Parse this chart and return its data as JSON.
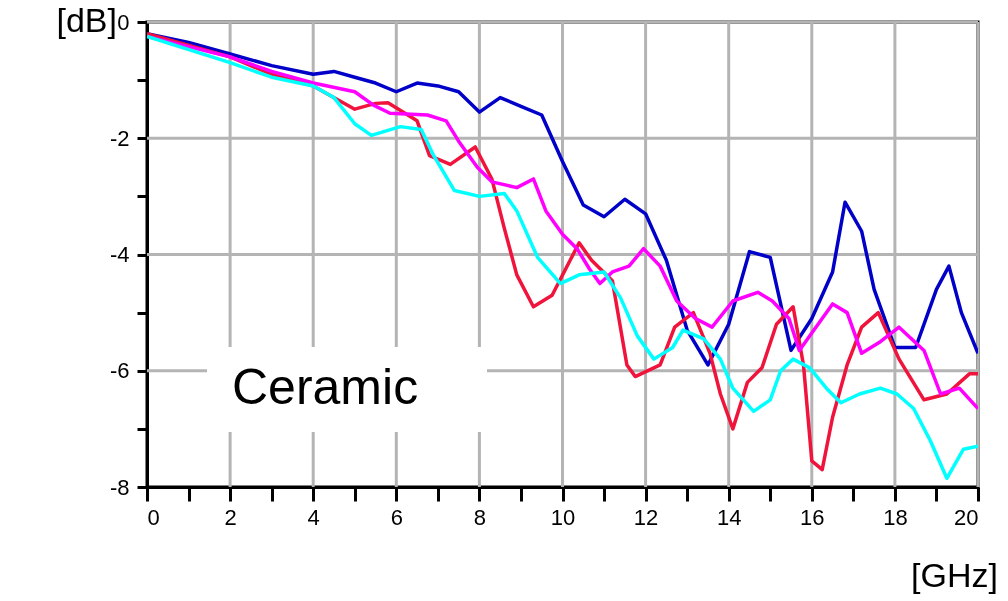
{
  "chart_data": {
    "type": "line",
    "xlabel": "[GHz]",
    "ylabel": "[dB]",
    "annotations": [
      "Ceramic"
    ],
    "xlim": [
      0,
      20
    ],
    "ylim": [
      -8,
      0
    ],
    "xticks": [
      0,
      {
        "value": 1,
        "label": null
      },
      2,
      {
        "value": 3,
        "label": null
      },
      4,
      {
        "value": 5,
        "label": null
      },
      6,
      {
        "value": 7,
        "label": null
      },
      8,
      {
        "value": 9,
        "label": null
      },
      10,
      {
        "value": 11,
        "label": null
      },
      12,
      {
        "value": 13,
        "label": null
      },
      14,
      {
        "value": 15,
        "label": null
      },
      16,
      {
        "value": 17,
        "label": null
      },
      18,
      {
        "value": 19,
        "label": null
      },
      20
    ],
    "yticks": [
      -8,
      {
        "value": -7,
        "label": null
      },
      -6,
      {
        "value": -5,
        "label": null
      },
      -4,
      {
        "value": -3,
        "label": null
      },
      -2,
      {
        "value": -1,
        "label": null
      },
      0
    ],
    "grid": true,
    "legend": false,
    "line_style": "solid",
    "marker": "none",
    "series": [
      {
        "color": "#0000c8",
        "x": [
          0,
          1,
          2,
          3,
          4,
          4.5,
          5,
          5.5,
          6,
          6.5,
          7,
          7.5,
          8,
          8.5,
          9,
          9.5,
          10,
          10.5,
          11,
          11.5,
          12,
          12.5,
          13,
          13.5,
          14,
          14.5,
          15,
          15.5,
          16,
          16.5,
          16.8,
          17.2,
          17.5,
          18,
          18.5,
          19,
          19.3,
          19.6,
          20
        ],
        "values": [
          -0.2,
          -0.35,
          -0.55,
          -0.75,
          -0.9,
          -0.85,
          -0.95,
          -1.05,
          -1.2,
          -1.05,
          -1.1,
          -1.2,
          -1.55,
          -1.3,
          -1.45,
          -1.6,
          -2.4,
          -3.15,
          -3.35,
          -3.05,
          -3.3,
          -4.1,
          -5.3,
          -5.9,
          -5.2,
          -3.95,
          -4.05,
          -5.65,
          -5.1,
          -4.3,
          -3.1,
          -3.6,
          -4.6,
          -5.6,
          -5.6,
          -4.6,
          -4.2,
          -5.0,
          -5.7
        ]
      },
      {
        "color": "#f0143c",
        "x": [
          0,
          2,
          3,
          4,
          5,
          5.5,
          5.8,
          6.5,
          6.8,
          7.3,
          7.9,
          8.3,
          8.6,
          8.9,
          9.3,
          9.75,
          10.4,
          10.7,
          11.2,
          11.55,
          11.75,
          12.35,
          12.7,
          13.15,
          13.55,
          13.8,
          14.1,
          14.45,
          14.8,
          15.15,
          15.55,
          15.8,
          16.0,
          16.25,
          16.5,
          16.85,
          17.2,
          17.6,
          18.1,
          18.7,
          19.25,
          19.8,
          20
        ],
        "values": [
          -0.2,
          -0.6,
          -0.9,
          -1.1,
          -1.5,
          -1.4,
          -1.39,
          -1.7,
          -2.3,
          -2.45,
          -2.15,
          -2.7,
          -3.55,
          -4.35,
          -4.9,
          -4.7,
          -3.8,
          -4.1,
          -4.45,
          -5.9,
          -6.1,
          -5.9,
          -5.25,
          -5.0,
          -5.7,
          -6.4,
          -7.0,
          -6.2,
          -5.95,
          -5.2,
          -4.9,
          -5.9,
          -7.55,
          -7.7,
          -6.8,
          -5.9,
          -5.25,
          -5.0,
          -5.8,
          -6.5,
          -6.4,
          -6.05,
          -6.05
        ]
      },
      {
        "color": "#ff00ff",
        "x": [
          0,
          2,
          3,
          4,
          5,
          5.45,
          5.85,
          6.75,
          7.2,
          7.5,
          7.95,
          8.3,
          8.9,
          9.3,
          9.6,
          10.0,
          10.35,
          10.65,
          10.9,
          11.2,
          11.6,
          11.95,
          12.35,
          12.75,
          13.2,
          13.6,
          14.1,
          14.7,
          15.05,
          15.45,
          15.7,
          16.0,
          16.5,
          16.85,
          17.2,
          17.65,
          18.1,
          18.7,
          19.1,
          19.55,
          20
        ],
        "values": [
          -0.25,
          -0.6,
          -0.85,
          -1.05,
          -1.2,
          -1.43,
          -1.57,
          -1.6,
          -1.7,
          -2.05,
          -2.5,
          -2.75,
          -2.85,
          -2.7,
          -3.25,
          -3.65,
          -3.9,
          -4.25,
          -4.5,
          -4.3,
          -4.2,
          -3.9,
          -4.2,
          -4.8,
          -5.1,
          -5.25,
          -4.8,
          -4.65,
          -4.8,
          -5.1,
          -5.65,
          -5.35,
          -4.85,
          -5.0,
          -5.7,
          -5.5,
          -5.25,
          -5.65,
          -6.4,
          -6.3,
          -6.65
        ]
      },
      {
        "color": "#00ffff",
        "x": [
          0,
          2,
          3,
          4,
          4.5,
          5.0,
          5.4,
          6.1,
          6.6,
          6.9,
          7.4,
          8.0,
          8.6,
          8.9,
          9.4,
          9.95,
          10.4,
          11.0,
          11.4,
          11.8,
          12.2,
          12.65,
          12.9,
          13.4,
          13.8,
          14.1,
          14.6,
          15.0,
          15.25,
          15.55,
          15.95,
          16.35,
          16.7,
          17.15,
          17.65,
          18.05,
          18.45,
          18.85,
          19.25,
          19.65,
          20
        ],
        "values": [
          -0.25,
          -0.7,
          -0.95,
          -1.1,
          -1.3,
          -1.75,
          -1.95,
          -1.8,
          -1.85,
          -2.3,
          -2.9,
          -3.0,
          -2.95,
          -3.25,
          -4.05,
          -4.5,
          -4.35,
          -4.3,
          -4.75,
          -5.4,
          -5.8,
          -5.6,
          -5.3,
          -5.45,
          -5.8,
          -6.3,
          -6.7,
          -6.5,
          -6.0,
          -5.8,
          -5.95,
          -6.3,
          -6.55,
          -6.4,
          -6.3,
          -6.4,
          -6.65,
          -7.2,
          -7.85,
          -7.35,
          -7.3
        ]
      }
    ]
  }
}
